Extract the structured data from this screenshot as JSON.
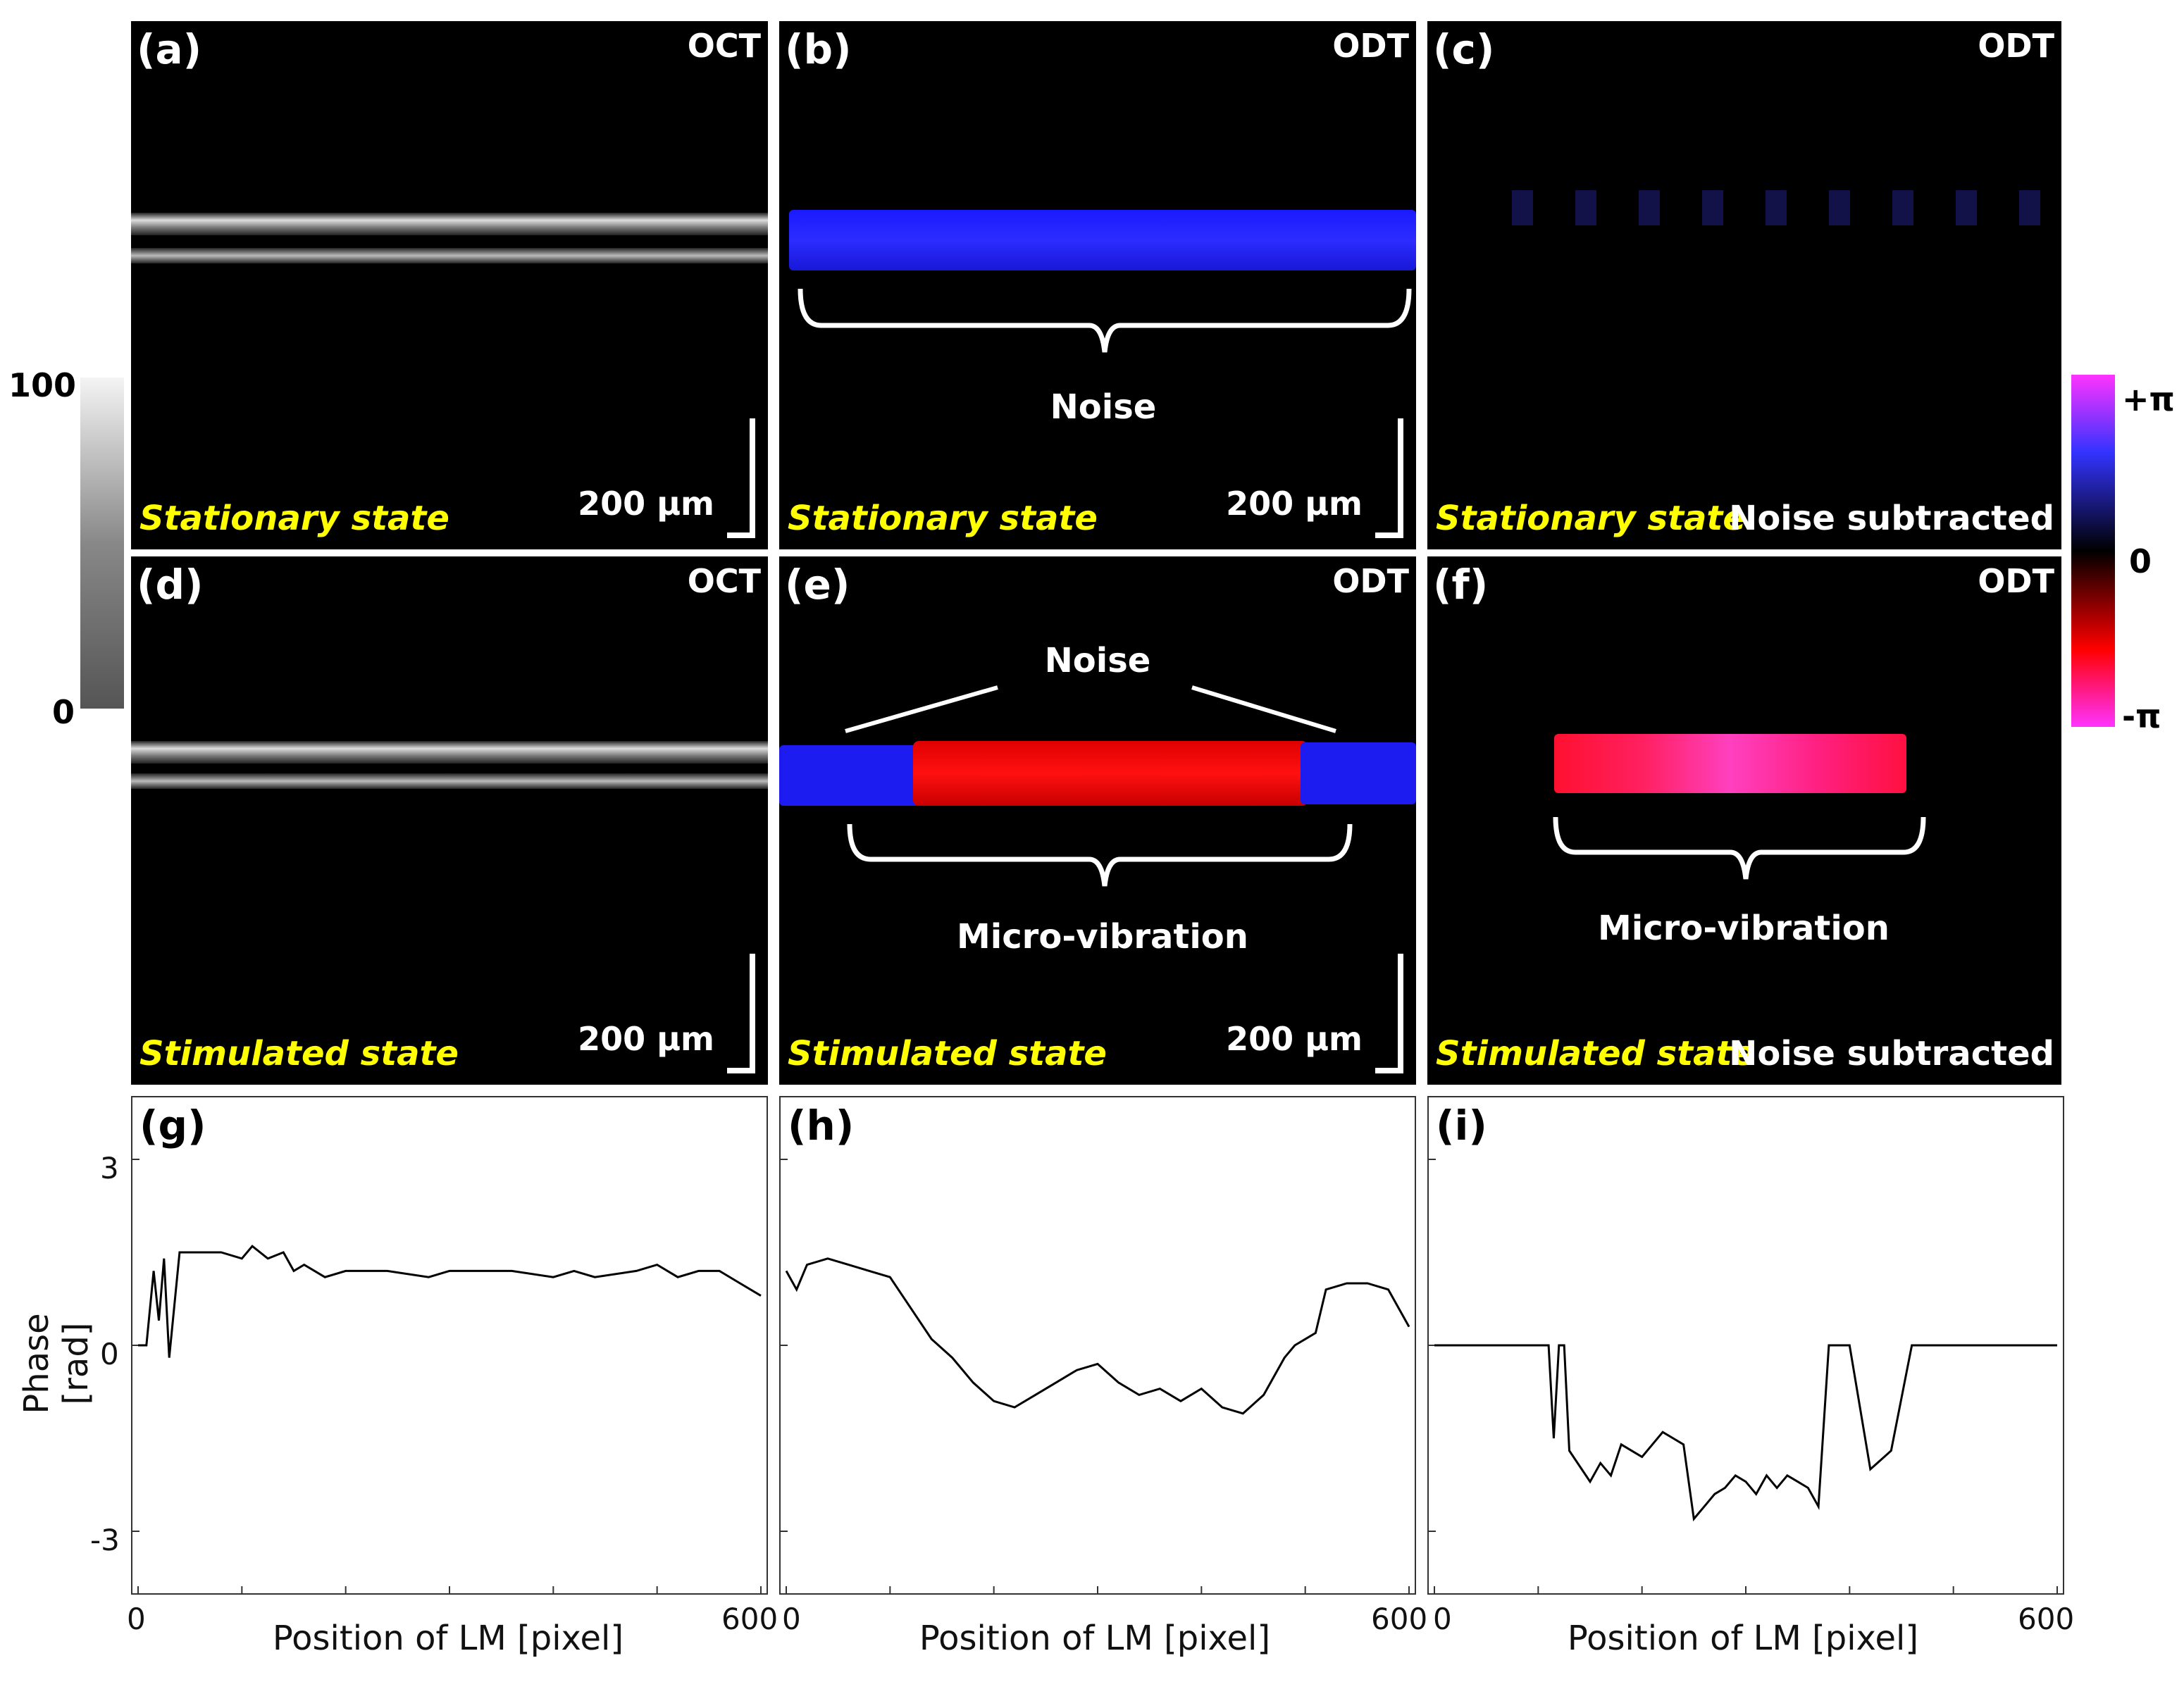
{
  "colorbar_gray": {
    "max_label": "100",
    "min_label": "0"
  },
  "colorbar_phase": {
    "top_label": "+π",
    "mid_label": "0",
    "bottom_label": "-π",
    "colors": [
      "#ff33ff",
      "#3333ff",
      "#000000",
      "#ff0000",
      "#ff33ff"
    ]
  },
  "panels": {
    "a": {
      "label": "(a)",
      "modality": "OCT",
      "state": "Stationary state",
      "scale": "200 µm"
    },
    "b": {
      "label": "(b)",
      "modality": "ODT",
      "state": "Stationary state",
      "scale": "200 µm",
      "annotation": "Noise"
    },
    "c": {
      "label": "(c)",
      "modality": "ODT",
      "state": "Stationary state",
      "note": "Noise subtracted"
    },
    "d": {
      "label": "(d)",
      "modality": "OCT",
      "state": "Stimulated state",
      "scale": "200 µm"
    },
    "e": {
      "label": "(e)",
      "modality": "ODT",
      "state": "Stimulated state",
      "scale": "200 µm",
      "annotation_top": "Noise",
      "annotation_bottom": "Micro-vibration"
    },
    "f": {
      "label": "(f)",
      "modality": "ODT",
      "state": "Stimulated state",
      "note": "Noise subtracted",
      "annotation": "Micro-vibration"
    }
  },
  "graphs": {
    "g": {
      "label": "(g)"
    },
    "h": {
      "label": "(h)"
    },
    "i": {
      "label": "(i)"
    },
    "ylabel": "Phase [rad]",
    "xlabel": "Position of LM [pixel]",
    "yticks": [
      "3",
      "0",
      "-3"
    ],
    "xticks": [
      "0",
      "600"
    ]
  },
  "chart_data": [
    {
      "type": "line",
      "panel": "g",
      "xlim": [
        0,
        600
      ],
      "ylim": [
        -4,
        4
      ],
      "x": [
        0,
        8,
        15,
        20,
        25,
        30,
        40,
        60,
        80,
        100,
        110,
        125,
        140,
        150,
        160,
        180,
        200,
        240,
        280,
        300,
        320,
        360,
        400,
        420,
        440,
        480,
        500,
        520,
        540,
        560,
        580,
        600
      ],
      "y": [
        0,
        0,
        1.2,
        0.4,
        1.4,
        -0.2,
        1.5,
        1.5,
        1.5,
        1.4,
        1.6,
        1.4,
        1.5,
        1.2,
        1.3,
        1.1,
        1.2,
        1.2,
        1.1,
        1.2,
        1.2,
        1.2,
        1.1,
        1.2,
        1.1,
        1.2,
        1.3,
        1.1,
        1.2,
        1.2,
        1.0,
        0.8
      ]
    },
    {
      "type": "line",
      "panel": "h",
      "xlim": [
        0,
        600
      ],
      "ylim": [
        -4,
        4
      ],
      "x": [
        0,
        10,
        20,
        40,
        60,
        80,
        100,
        120,
        140,
        160,
        180,
        200,
        220,
        240,
        260,
        280,
        300,
        320,
        340,
        360,
        380,
        400,
        420,
        440,
        460,
        480,
        490,
        500,
        510,
        520,
        540,
        560,
        580,
        600
      ],
      "y": [
        1.2,
        0.9,
        1.3,
        1.4,
        1.3,
        1.2,
        1.1,
        0.6,
        0.1,
        -0.2,
        -0.6,
        -0.9,
        -1.0,
        -0.8,
        -0.6,
        -0.4,
        -0.3,
        -0.6,
        -0.8,
        -0.7,
        -0.9,
        -0.7,
        -1.0,
        -1.1,
        -0.8,
        -0.2,
        0.0,
        0.1,
        0.2,
        0.9,
        1.0,
        1.0,
        0.9,
        0.3
      ]
    },
    {
      "type": "line",
      "panel": "i",
      "xlim": [
        0,
        600
      ],
      "ylim": [
        -4,
        4
      ],
      "x": [
        0,
        50,
        100,
        110,
        115,
        120,
        125,
        130,
        150,
        160,
        170,
        180,
        200,
        220,
        230,
        240,
        250,
        260,
        270,
        280,
        290,
        300,
        310,
        320,
        330,
        340,
        350,
        360,
        370,
        380,
        390,
        400,
        420,
        440,
        460,
        480,
        500,
        550,
        600
      ],
      "y": [
        0,
        0,
        0,
        0,
        -1.5,
        0,
        0,
        -1.7,
        -2.2,
        -1.9,
        -2.1,
        -1.6,
        -1.8,
        -1.4,
        -1.5,
        -1.6,
        -2.8,
        -2.6,
        -2.4,
        -2.3,
        -2.1,
        -2.2,
        -2.4,
        -2.1,
        -2.3,
        -2.1,
        -2.2,
        -2.3,
        -2.6,
        0,
        0,
        0,
        -2.0,
        -1.7,
        0,
        0,
        0,
        0,
        0
      ]
    }
  ]
}
